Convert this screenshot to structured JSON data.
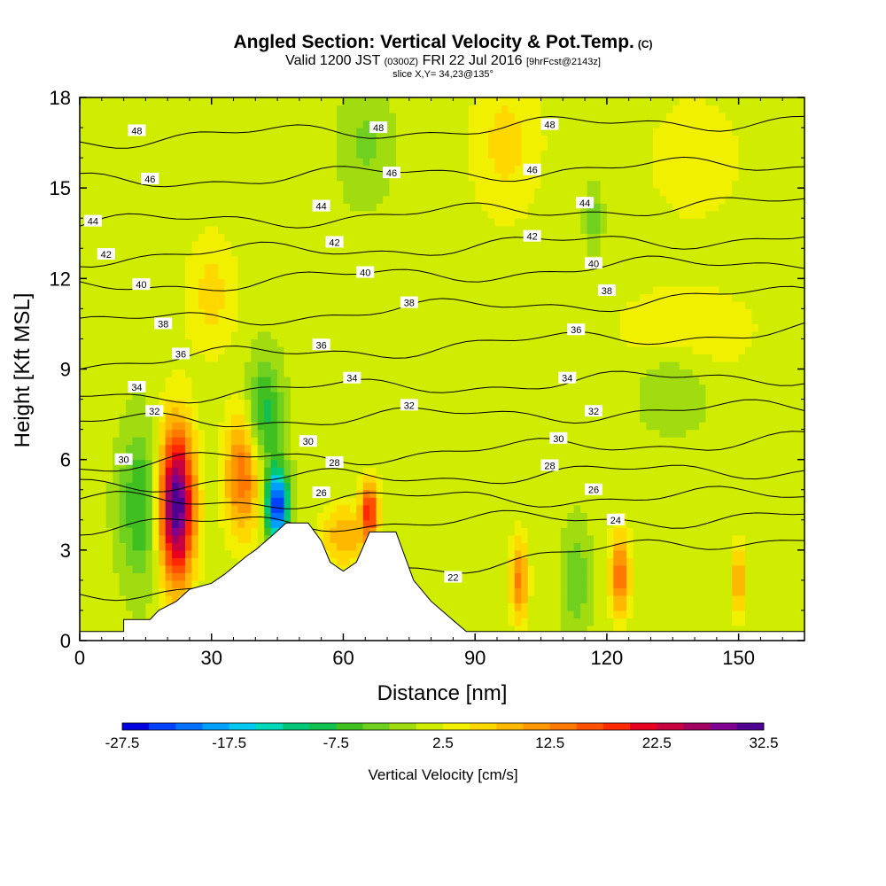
{
  "chart_data": {
    "type": "heatmap",
    "title": "Angled Section: Vertical Velocity & Pot.Temp.",
    "title_note": "(C)",
    "subtitle_valid": "Valid 1200 JST",
    "subtitle_utc": "(0300Z)",
    "subtitle_date": "FRI 22 Jul 2016",
    "subtitle_fcst": "[9hrFcst@2143z]",
    "slice_label": "slice X,Y= 34,23@135°",
    "xlabel": "Distance [nm]",
    "ylabel": "Height [Kft MSL]",
    "xlim": [
      0,
      165
    ],
    "ylim": [
      0,
      18
    ],
    "xticks": [
      0,
      30,
      60,
      90,
      120,
      150
    ],
    "yticks": [
      0,
      3,
      6,
      9,
      12,
      15,
      18
    ],
    "colorbar_label": "Vertical Velocity [cm/s]",
    "colorbar_ticks": [
      "-27.5",
      "-17.5",
      "-7.5",
      "2.5",
      "12.5",
      "22.5",
      "32.5"
    ],
    "colorbar_range": [
      -27.5,
      32.5
    ],
    "colorbar_colors": [
      "#0000e0",
      "#0040ff",
      "#0070ff",
      "#00a0ff",
      "#00c8f0",
      "#00d8b8",
      "#00c878",
      "#10c050",
      "#40c020",
      "#70d020",
      "#a0dc10",
      "#d0ec00",
      "#f0f000",
      "#ffd800",
      "#ffb800",
      "#ff9800",
      "#ff7800",
      "#ff5000",
      "#ff2800",
      "#e80020",
      "#c80040",
      "#a00060",
      "#800090",
      "#500090"
    ],
    "background_color": "#b4e61e",
    "velocity_features": [
      {
        "x": 22,
        "z": 4.5,
        "value": 32.5,
        "sx": 4,
        "sz": 2.5
      },
      {
        "x": 37,
        "z": 5.5,
        "value": 14,
        "sx": 4,
        "sz": 2.0
      },
      {
        "x": 45,
        "z": 4.5,
        "value": -27.5,
        "sx": 2.5,
        "sz": 1.2
      },
      {
        "x": 42,
        "z": 7.5,
        "value": -10,
        "sx": 4,
        "sz": 1.8
      },
      {
        "x": 14,
        "z": 4.5,
        "value": -9,
        "sx": 5,
        "sz": 2.5
      },
      {
        "x": 66,
        "z": 4.3,
        "value": 18,
        "sx": 2,
        "sz": 1.0
      },
      {
        "x": 60,
        "z": 3.5,
        "value": 9,
        "sx": 5,
        "sz": 1.0
      },
      {
        "x": 100,
        "z": 2.0,
        "value": 12,
        "sx": 2,
        "sz": 1.4
      },
      {
        "x": 123,
        "z": 2.2,
        "value": 14,
        "sx": 2.2,
        "sz": 1.4
      },
      {
        "x": 150,
        "z": 2.0,
        "value": 10,
        "sx": 1.5,
        "sz": 1.2
      },
      {
        "x": 113,
        "z": 2.0,
        "value": -6,
        "sx": 3,
        "sz": 1.8
      },
      {
        "x": 138,
        "z": 10.3,
        "value": 4,
        "sx": 16,
        "sz": 1.5
      },
      {
        "x": 97,
        "z": 16.5,
        "value": 5,
        "sx": 8,
        "sz": 2.5
      },
      {
        "x": 140,
        "z": 16,
        "value": 4,
        "sx": 10,
        "sz": 2
      },
      {
        "x": 30,
        "z": 11.5,
        "value": 5,
        "sx": 6,
        "sz": 2
      },
      {
        "x": 65,
        "z": 16.5,
        "value": -4,
        "sx": 6,
        "sz": 2
      },
      {
        "x": 135,
        "z": 8.5,
        "value": -4,
        "sx": 8,
        "sz": 1.5
      },
      {
        "x": 117,
        "z": 14,
        "value": -5,
        "sx": 2,
        "sz": 1
      }
    ],
    "terrain_profile": [
      {
        "x": 0,
        "z": 0.3
      },
      {
        "x": 10,
        "z": 0.3
      },
      {
        "x": 10,
        "z": 0.7
      },
      {
        "x": 16,
        "z": 0.7
      },
      {
        "x": 18,
        "z": 1.0
      },
      {
        "x": 22,
        "z": 1.3
      },
      {
        "x": 25,
        "z": 1.7
      },
      {
        "x": 30,
        "z": 1.9
      },
      {
        "x": 33,
        "z": 2.2
      },
      {
        "x": 38,
        "z": 2.8
      },
      {
        "x": 40,
        "z": 3.0
      },
      {
        "x": 44,
        "z": 3.5
      },
      {
        "x": 47,
        "z": 3.9
      },
      {
        "x": 52,
        "z": 3.9
      },
      {
        "x": 55,
        "z": 3.3
      },
      {
        "x": 57,
        "z": 2.6
      },
      {
        "x": 60,
        "z": 2.3
      },
      {
        "x": 63,
        "z": 2.6
      },
      {
        "x": 66,
        "z": 3.6
      },
      {
        "x": 72,
        "z": 3.6
      },
      {
        "x": 76,
        "z": 2.0
      },
      {
        "x": 80,
        "z": 1.3
      },
      {
        "x": 84,
        "z": 0.8
      },
      {
        "x": 88,
        "z": 0.3
      },
      {
        "x": 165,
        "z": 0.3
      }
    ],
    "theta_contours": [
      {
        "value": 22,
        "label": "22",
        "z_left": 1.5,
        "z_right": 3.5,
        "lx": 85,
        "lz": 2.1
      },
      {
        "value": 24,
        "label": "24",
        "z_left": 3.8,
        "z_right": 4.1,
        "lx": 122,
        "lz": 4.0
      },
      {
        "value": 26,
        "label": "26",
        "z_left": 4.6,
        "z_right": 4.8,
        "lx": 55,
        "lz": 4.9
      },
      {
        "value": 28,
        "label": "28",
        "z_left": 5.2,
        "z_right": 5.7,
        "lx": 58,
        "lz": 5.9
      },
      {
        "value": 30,
        "label": "30",
        "z_left": 5.8,
        "z_right": 6.7,
        "lx": 10,
        "lz": 6.0
      },
      {
        "value": 32,
        "label": "32",
        "z_left": 7.2,
        "z_right": 7.7,
        "lx": 17,
        "lz": 7.6
      },
      {
        "value": 34,
        "label": "34",
        "z_left": 8.1,
        "z_right": 8.8,
        "lx": 13,
        "lz": 8.4
      },
      {
        "value": 36,
        "label": "36",
        "z_left": 9.2,
        "z_right": 10.3,
        "lx": 23,
        "lz": 9.5
      },
      {
        "value": 38,
        "label": "38",
        "z_left": 10.5,
        "z_right": 11.5,
        "lx": 19,
        "lz": 10.5
      },
      {
        "value": 40,
        "label": "40",
        "z_left": 11.7,
        "z_right": 12.6,
        "lx": 14,
        "lz": 11.8
      },
      {
        "value": 42,
        "label": "42",
        "z_left": 12.7,
        "z_right": 13.4,
        "lx": 6,
        "lz": 12.8
      },
      {
        "value": 44,
        "label": "44",
        "z_left": 13.8,
        "z_right": 14.5,
        "lx": 3,
        "lz": 13.9
      },
      {
        "value": 46,
        "label": "46",
        "z_left": 15.2,
        "z_right": 15.8,
        "lx": 16,
        "lz": 15.3
      },
      {
        "value": 48,
        "label": "48",
        "z_left": 16.6,
        "z_right": 17.3,
        "lx": 13,
        "lz": 16.9
      }
    ],
    "contour_labels_extra": [
      {
        "label": "48",
        "x": 68,
        "z": 17.0
      },
      {
        "label": "48",
        "x": 107,
        "z": 17.1
      },
      {
        "label": "46",
        "x": 71,
        "z": 15.5
      },
      {
        "label": "46",
        "x": 103,
        "z": 15.6
      },
      {
        "label": "44",
        "x": 55,
        "z": 14.4
      },
      {
        "label": "44",
        "x": 115,
        "z": 14.5
      },
      {
        "label": "42",
        "x": 58,
        "z": 13.2
      },
      {
        "label": "42",
        "x": 103,
        "z": 13.4
      },
      {
        "label": "40",
        "x": 65,
        "z": 12.2
      },
      {
        "label": "40",
        "x": 117,
        "z": 12.5
      },
      {
        "label": "38",
        "x": 75,
        "z": 11.2
      },
      {
        "label": "38",
        "x": 120,
        "z": 11.6
      },
      {
        "label": "36",
        "x": 55,
        "z": 9.8
      },
      {
        "label": "36",
        "x": 113,
        "z": 10.3
      },
      {
        "label": "34",
        "x": 62,
        "z": 8.7
      },
      {
        "label": "34",
        "x": 111,
        "z": 8.7
      },
      {
        "label": "32",
        "x": 75,
        "z": 7.8
      },
      {
        "label": "32",
        "x": 117,
        "z": 7.6
      },
      {
        "label": "30",
        "x": 52,
        "z": 6.6
      },
      {
        "label": "30",
        "x": 109,
        "z": 6.7
      },
      {
        "label": "28",
        "x": 107,
        "z": 5.8
      },
      {
        "label": "26",
        "x": 117,
        "z": 5.0
      }
    ]
  }
}
